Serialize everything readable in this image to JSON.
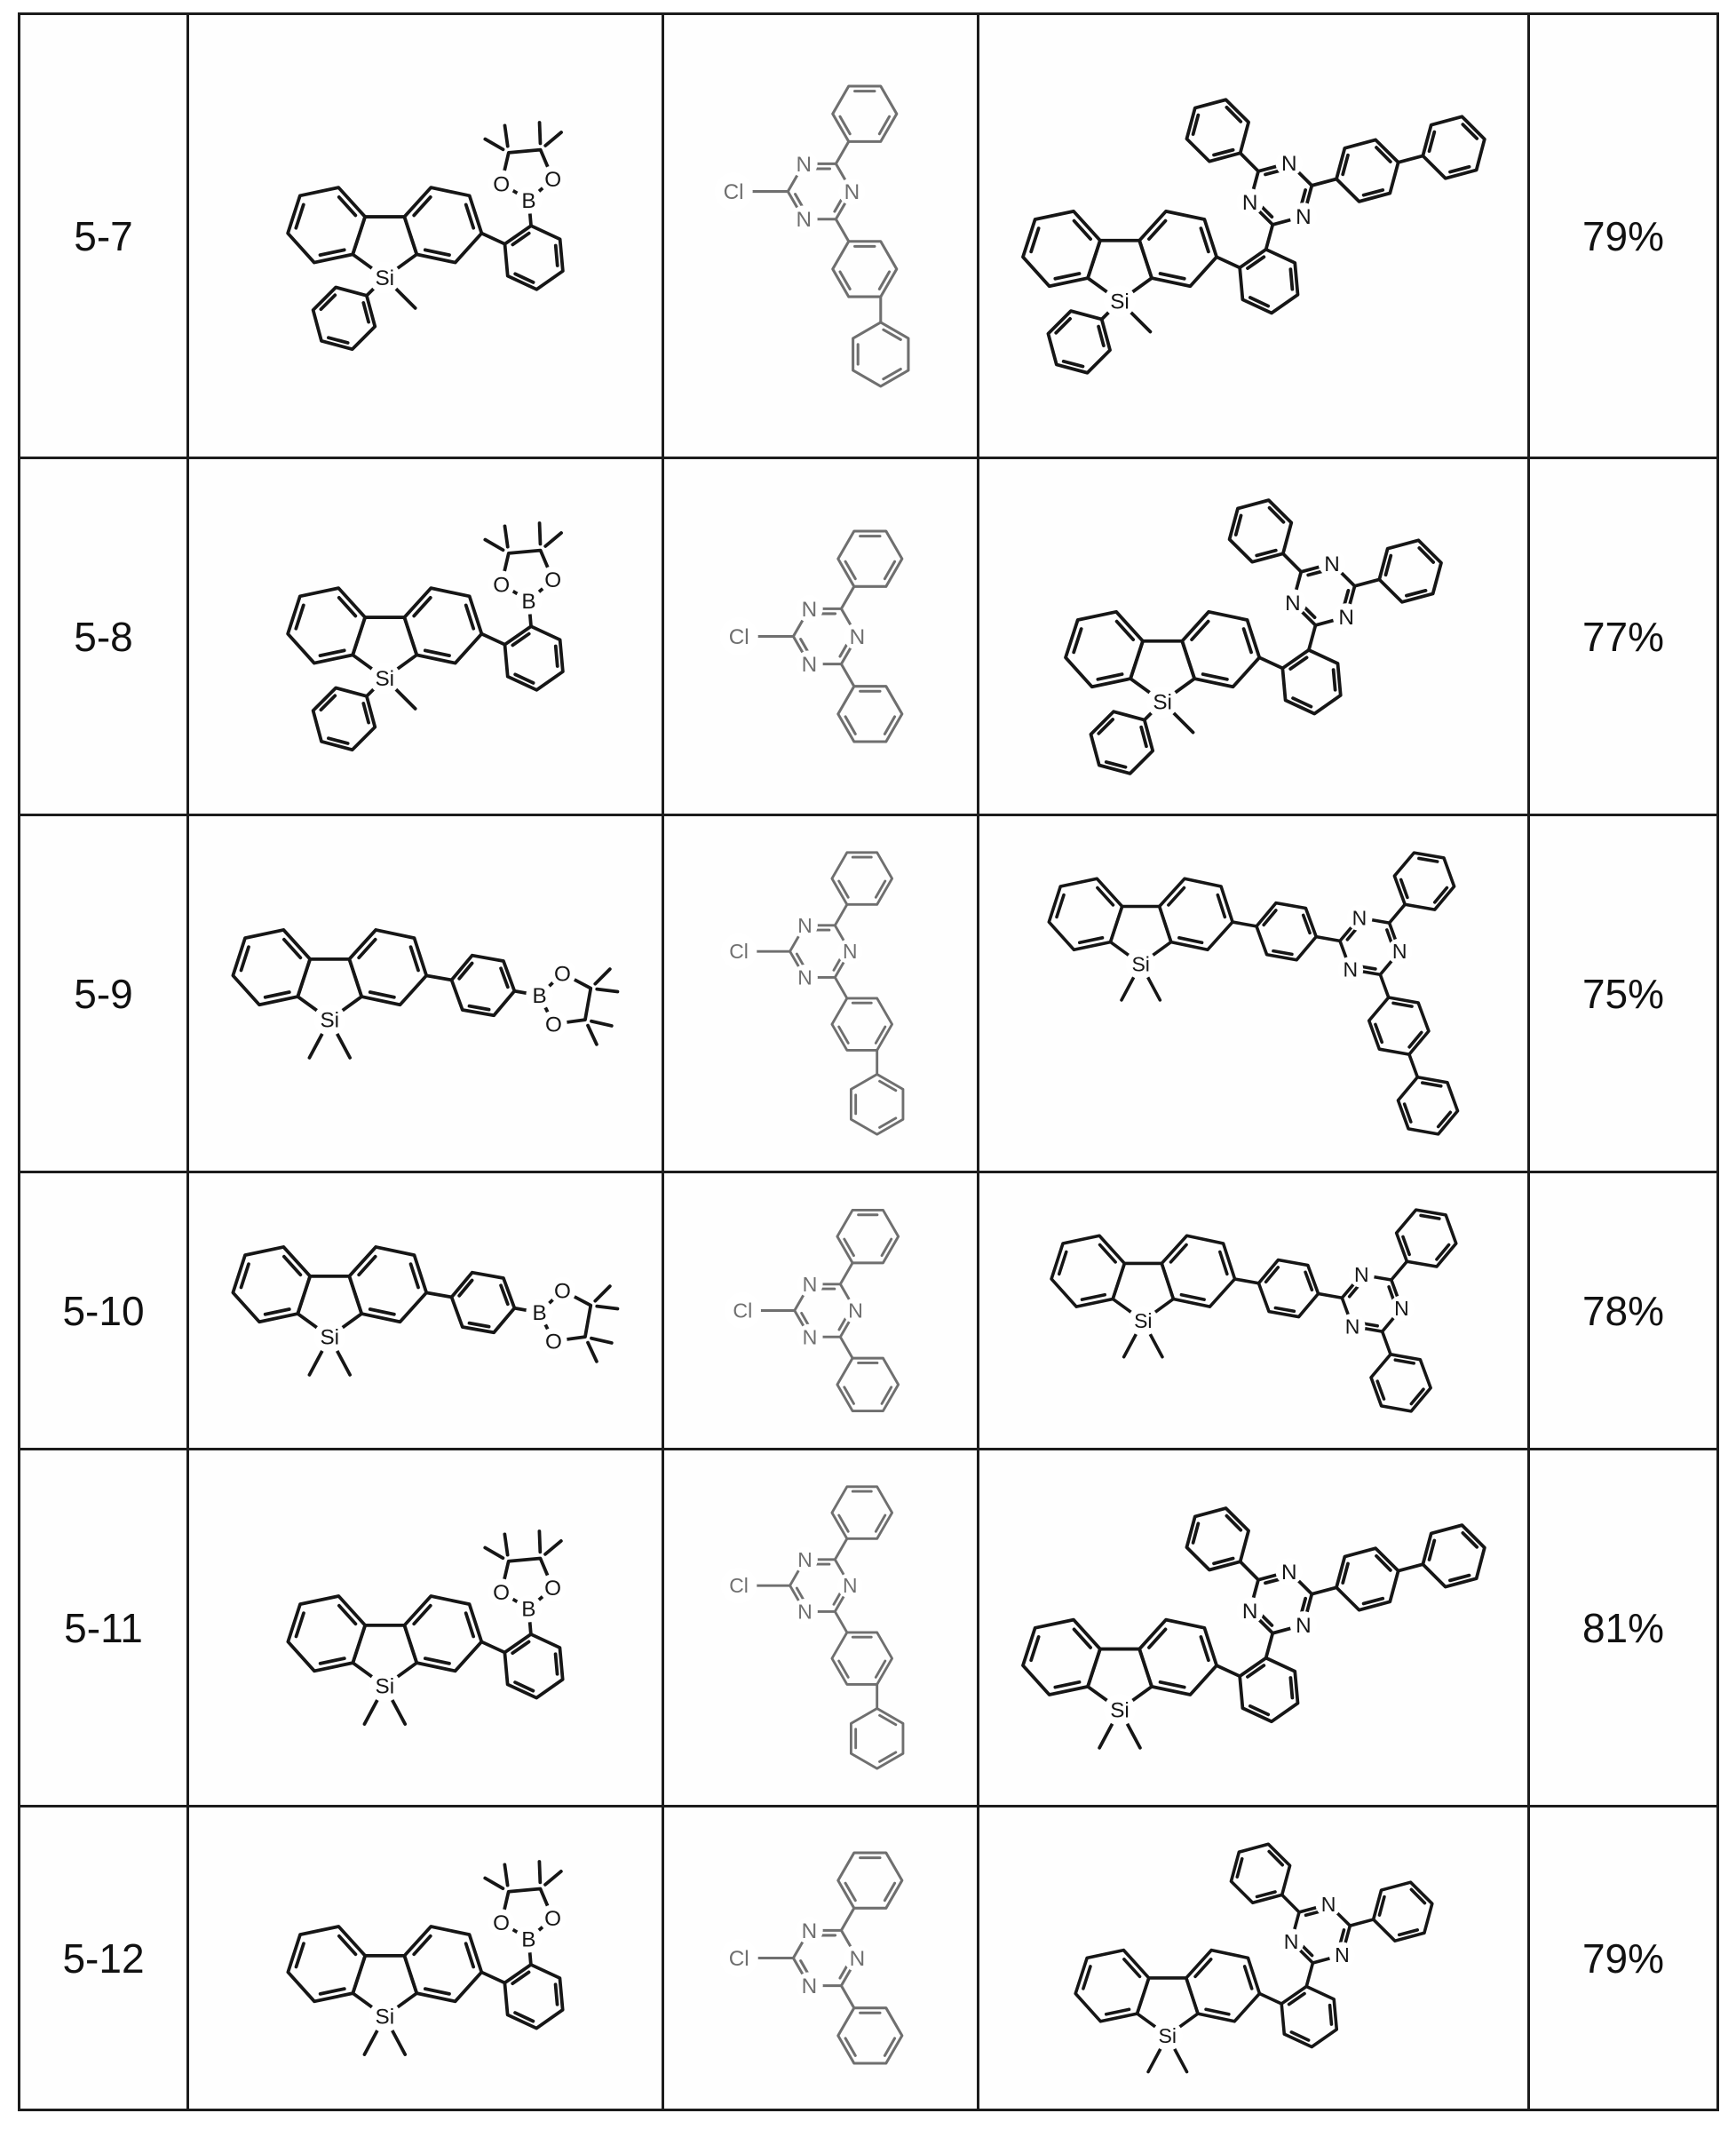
{
  "atom_labels": {
    "si": "Si",
    "n": "N",
    "o": "O",
    "b": "B",
    "cl": "Cl"
  },
  "colors": {
    "bond_dark": "#161616",
    "bond_light": "#6f6f6f",
    "border": "#1c1c1c",
    "text": "#111111"
  },
  "columns": {
    "id": "compound-number",
    "reactant1": "boronate-ester-structure",
    "reactant2": "chlorotriazine-structure",
    "product": "product-structure",
    "yield": "isolated-yield"
  },
  "rows": [
    {
      "id": "5-7",
      "yield": "79%",
      "structs": [
        "silaflPhMe_orthoBpin",
        "clTriazine_biphenyl",
        "product_phMe_ortho_biphenyl"
      ]
    },
    {
      "id": "5-8",
      "yield": "77%",
      "structs": [
        "silaflPhMe_orthoBpin",
        "clTriazine_phenyl",
        "product_phMe_ortho_phenyl"
      ]
    },
    {
      "id": "5-9",
      "yield": "75%",
      "structs": [
        "silaflMe2_paraBpin",
        "clTriazine_biphenyl",
        "product_me2_para_biphenyl"
      ]
    },
    {
      "id": "5-10",
      "yield": "78%",
      "structs": [
        "silaflMe2_paraBpin",
        "clTriazine_phenyl",
        "product_me2_para_phenyl"
      ]
    },
    {
      "id": "5-11",
      "yield": "81%",
      "structs": [
        "silaflMe2_orthoBpin",
        "clTriazine_biphenyl",
        "product_me2_ortho_biphenyl"
      ]
    },
    {
      "id": "5-12",
      "yield": "79%",
      "structs": [
        "silaflMe2_orthoBpin",
        "clTriazine_phenyl",
        "product_me2_ortho_phenyl"
      ]
    }
  ]
}
